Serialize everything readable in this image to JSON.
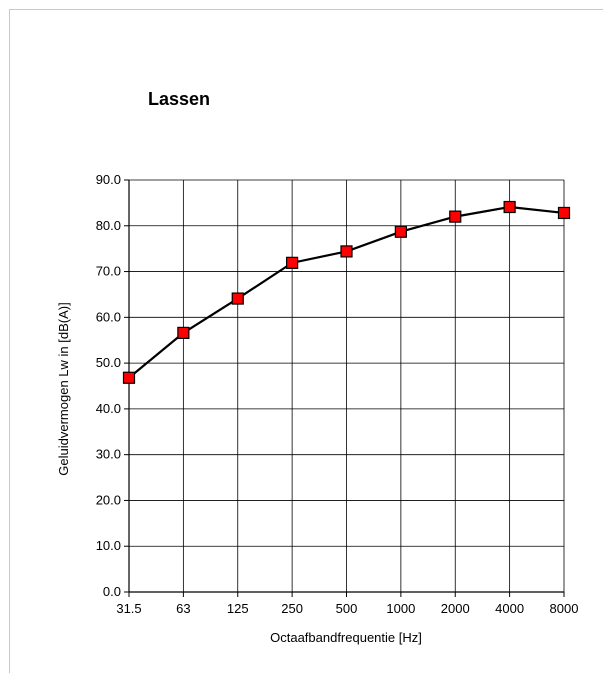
{
  "chart_data": {
    "type": "line",
    "title": "Lassen",
    "xlabel": "Octaafbandfrequentie [Hz]",
    "ylabel": "Geluidvermogen Lw in  [dB(A)]",
    "categories": [
      "31.5",
      "63",
      "125",
      "250",
      "500",
      "1000",
      "2000",
      "4000",
      "8000"
    ],
    "values": [
      46.8,
      56.6,
      64.1,
      71.9,
      74.4,
      78.7,
      82.0,
      84.1,
      82.8
    ],
    "ylim": [
      0,
      90
    ],
    "yticks": [
      "0.0",
      "10.0",
      "20.0",
      "30.0",
      "40.0",
      "50.0",
      "60.0",
      "70.0",
      "80.0",
      "90.0"
    ],
    "grid": true,
    "marker_color": "#ff0000",
    "line_color": "#000000"
  }
}
